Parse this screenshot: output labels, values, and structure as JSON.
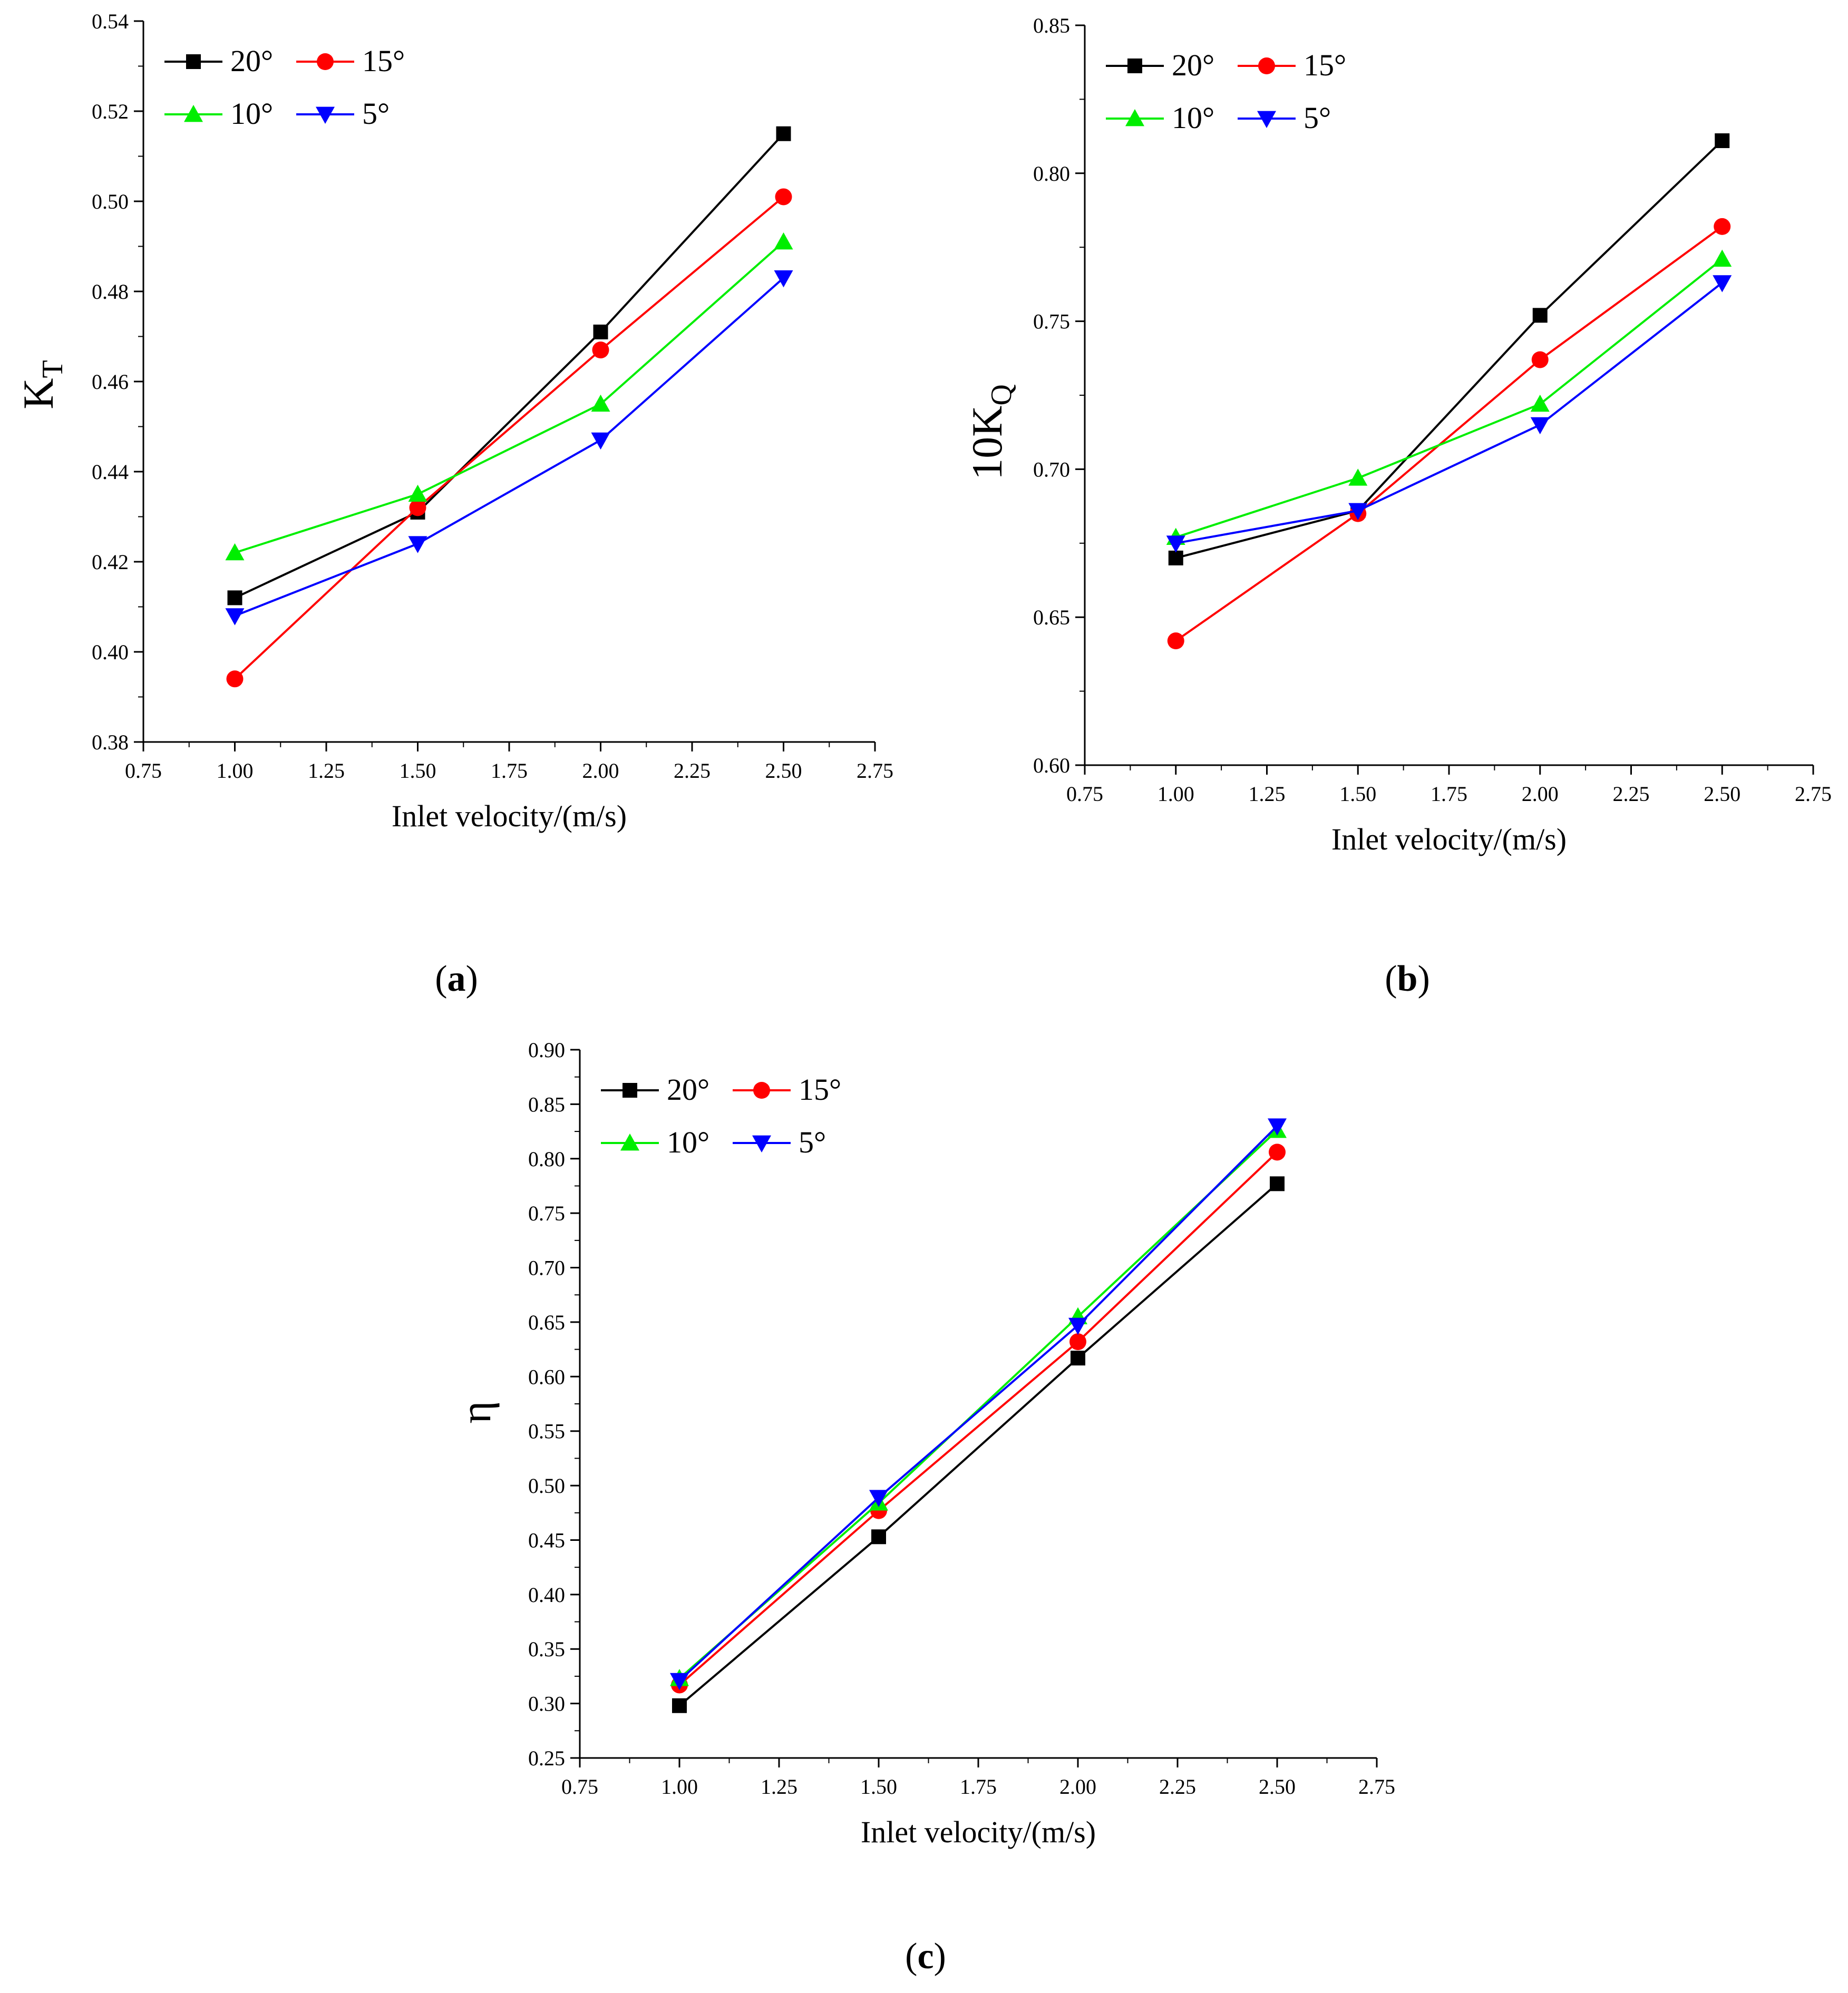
{
  "series_colors": {
    "20°": "#000000",
    "15°": "#ff0000",
    "10°": "#00ee00",
    "5°": "#0000ff"
  },
  "chart_data": [
    {
      "type": "line",
      "panel": "(a)",
      "panel_letter": "a",
      "xlabel": "Inlet velocity/(m/s)",
      "ylabel_main": "K",
      "ylabel_sub": "T",
      "xlim": [
        0.75,
        2.75
      ],
      "ylim": [
        0.38,
        0.54
      ],
      "xticks": [
        "0.75",
        "1.00",
        "1.25",
        "1.50",
        "1.75",
        "2.00",
        "2.25",
        "2.50",
        "2.75"
      ],
      "yticks": [
        "0.38",
        "0.40",
        "0.42",
        "0.44",
        "0.46",
        "0.48",
        "0.50",
        "0.52",
        "0.54"
      ],
      "x": [
        1.0,
        1.5,
        2.0,
        2.5
      ],
      "series": [
        {
          "name": "20°",
          "marker": "square",
          "values": [
            0.412,
            0.431,
            0.471,
            0.515
          ]
        },
        {
          "name": "15°",
          "marker": "circle",
          "values": [
            0.394,
            0.432,
            0.467,
            0.501
          ]
        },
        {
          "name": "10°",
          "marker": "triangle-up",
          "values": [
            0.422,
            0.435,
            0.455,
            0.491
          ]
        },
        {
          "name": "5°",
          "marker": "triangle-down",
          "values": [
            0.408,
            0.424,
            0.447,
            0.483
          ]
        }
      ]
    },
    {
      "type": "line",
      "panel": "(b)",
      "panel_letter": "b",
      "xlabel": "Inlet velocity/(m/s)",
      "ylabel_main": "10K",
      "ylabel_sub": "Q",
      "xlim": [
        0.75,
        2.75
      ],
      "ylim": [
        0.6,
        0.85
      ],
      "xticks": [
        "0.75",
        "1.00",
        "1.25",
        "1.50",
        "1.75",
        "2.00",
        "2.25",
        "2.50",
        "2.75"
      ],
      "yticks": [
        "0.60",
        "0.65",
        "0.70",
        "0.75",
        "0.80",
        "0.85"
      ],
      "x": [
        1.0,
        1.5,
        2.0,
        2.5
      ],
      "series": [
        {
          "name": "20°",
          "marker": "square",
          "values": [
            0.67,
            0.686,
            0.752,
            0.811
          ]
        },
        {
          "name": "15°",
          "marker": "circle",
          "values": [
            0.642,
            0.685,
            0.737,
            0.782
          ]
        },
        {
          "name": "10°",
          "marker": "triangle-up",
          "values": [
            0.677,
            0.697,
            0.722,
            0.771
          ]
        },
        {
          "name": "5°",
          "marker": "triangle-down",
          "values": [
            0.675,
            0.686,
            0.715,
            0.763
          ]
        }
      ]
    },
    {
      "type": "line",
      "panel": "(c)",
      "panel_letter": "c",
      "xlabel": "Inlet velocity/(m/s)",
      "ylabel_main": "η",
      "ylabel_sub": "",
      "xlim": [
        0.75,
        2.75
      ],
      "ylim": [
        0.25,
        0.9
      ],
      "xticks": [
        "0.75",
        "1.00",
        "1.25",
        "1.50",
        "1.75",
        "2.00",
        "2.25",
        "2.50",
        "2.75"
      ],
      "yticks": [
        "0.25",
        "0.30",
        "0.35",
        "0.40",
        "0.45",
        "0.50",
        "0.55",
        "0.60",
        "0.65",
        "0.70",
        "0.75",
        "0.80",
        "0.85",
        "0.90"
      ],
      "x": [
        1.0,
        1.5,
        2.0,
        2.5
      ],
      "series": [
        {
          "name": "20°",
          "marker": "square",
          "values": [
            0.298,
            0.453,
            0.617,
            0.777
          ]
        },
        {
          "name": "15°",
          "marker": "circle",
          "values": [
            0.317,
            0.477,
            0.632,
            0.806
          ]
        },
        {
          "name": "10°",
          "marker": "triangle-up",
          "values": [
            0.323,
            0.484,
            0.655,
            0.826
          ]
        },
        {
          "name": "5°",
          "marker": "triangle-down",
          "values": [
            0.321,
            0.489,
            0.647,
            0.83
          ]
        }
      ]
    }
  ]
}
